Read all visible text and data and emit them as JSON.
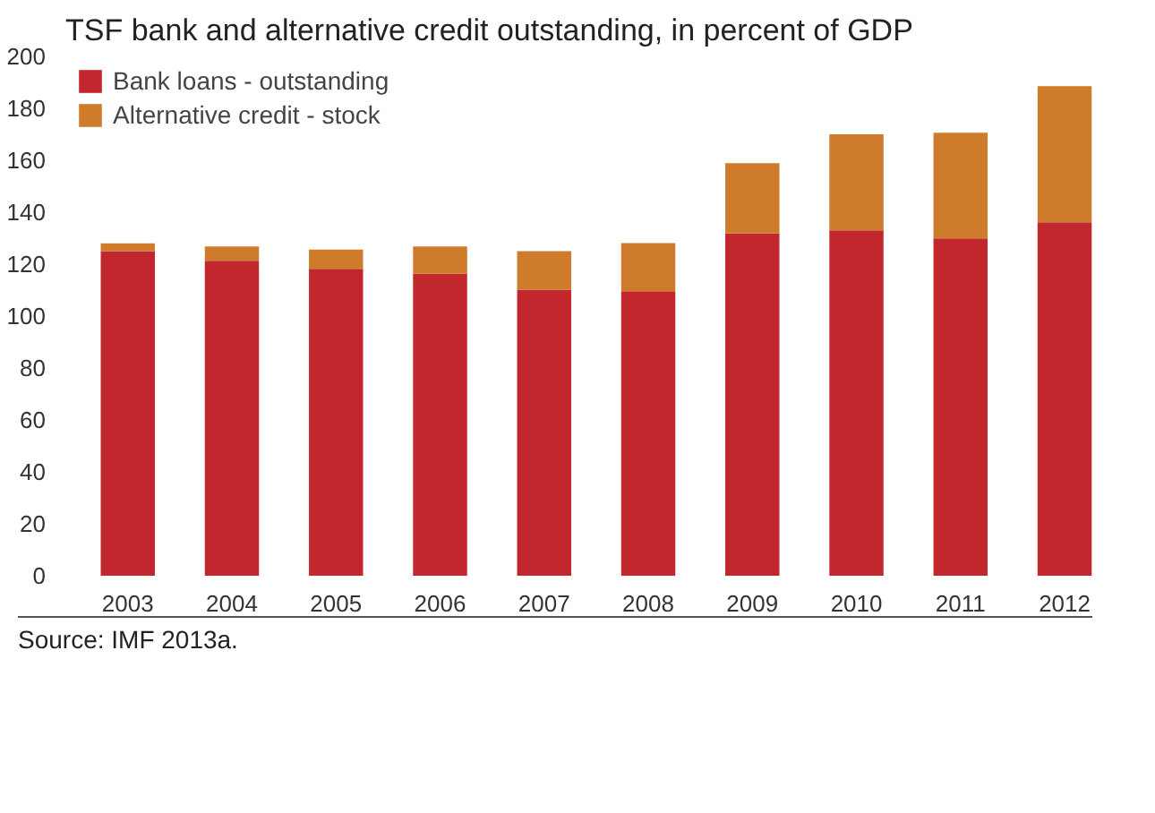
{
  "chart_data": {
    "type": "bar",
    "title": "TSF bank and alternative credit outstanding, in percent of GDP",
    "categories": [
      "2003",
      "2004",
      "2005",
      "2006",
      "2007",
      "2008",
      "2009",
      "2010",
      "2011",
      "2012"
    ],
    "series": [
      {
        "name": "Bank loans - outstanding",
        "color": "#c1272d",
        "values": [
          125,
          121.3,
          118.2,
          116.3,
          110.2,
          109.6,
          131.8,
          133,
          129.9,
          136.1
        ]
      },
      {
        "name": "Alternative credit - stock",
        "color": "#ce7b2c",
        "values": [
          3,
          5.5,
          7.4,
          10.5,
          14.8,
          18.5,
          27.1,
          37,
          40.7,
          52.4
        ]
      }
    ],
    "stacked": true,
    "ylim": [
      0,
      200
    ],
    "yticks": [
      0,
      20,
      40,
      60,
      80,
      100,
      120,
      140,
      160,
      180,
      200
    ],
    "grid": false,
    "legend": "top left",
    "annotations": [
      "Source: IMF 2013a."
    ]
  }
}
